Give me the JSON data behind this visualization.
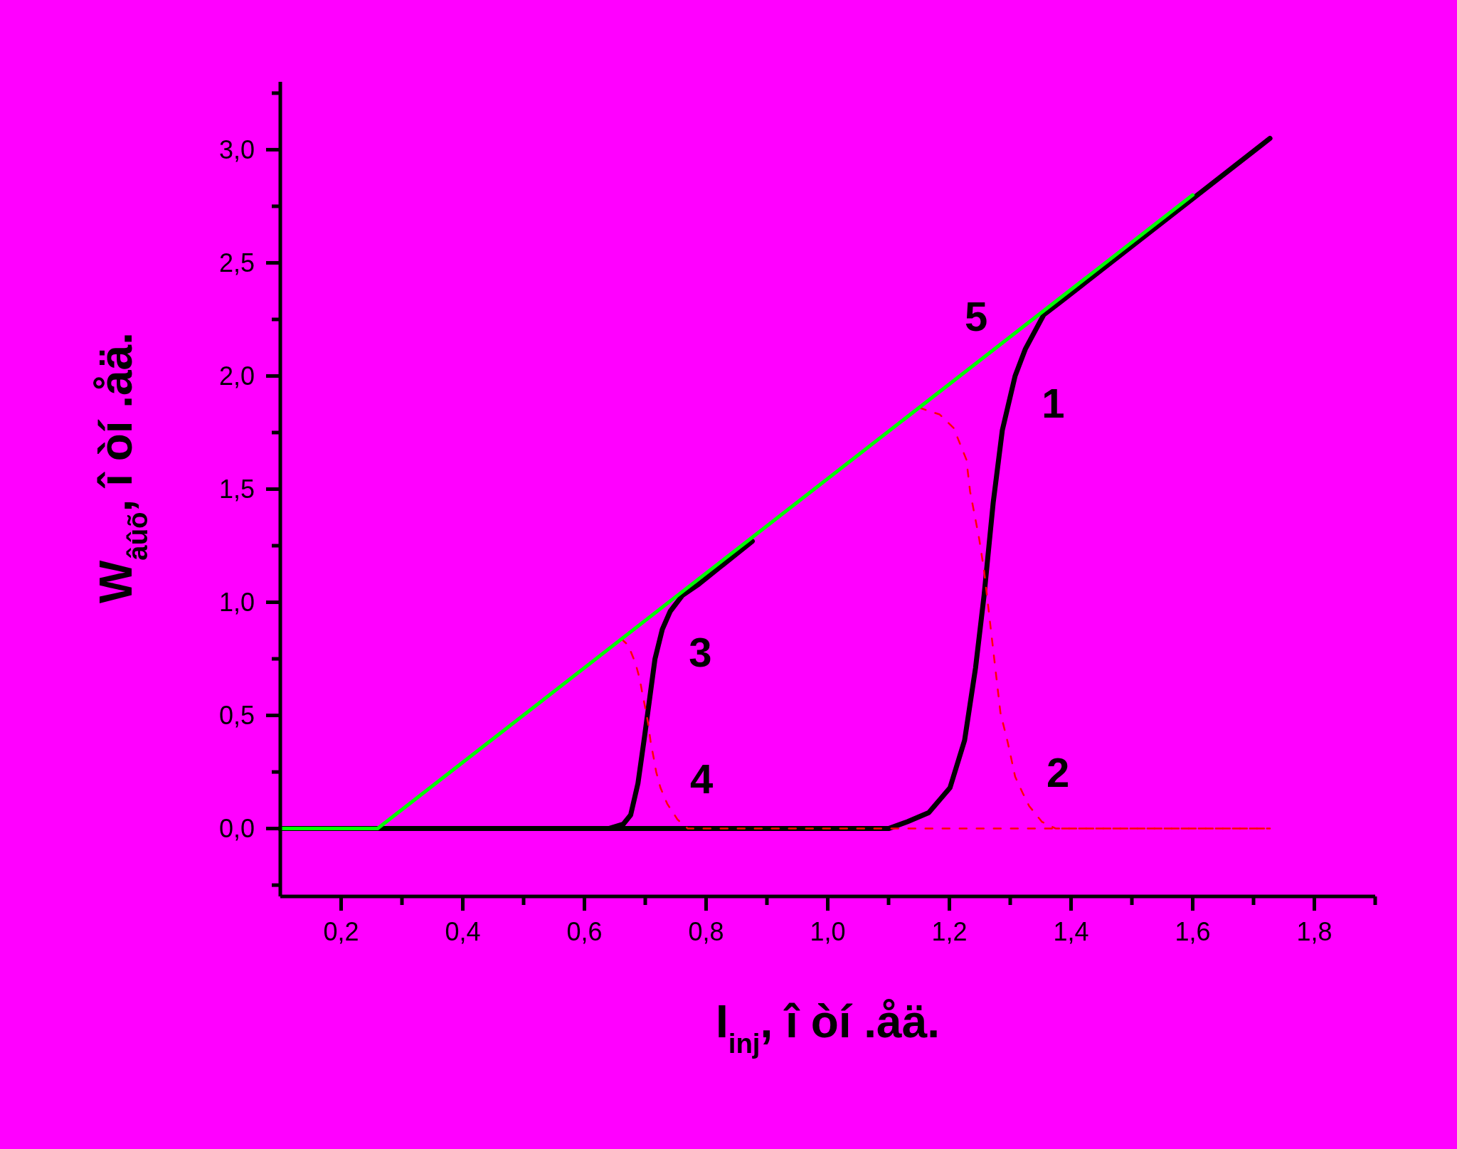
{
  "chart_data": {
    "type": "line",
    "xlabel": "I$_{inj}$, î òí .åä.",
    "ylabel": "W$_{âûõ}$, î òí .åä.",
    "xlim": [
      0.1,
      1.9
    ],
    "ylim": [
      -0.3,
      3.3
    ],
    "xticks": [
      {
        "value": 0.2,
        "label": "0,2"
      },
      {
        "value": 0.3,
        "label": null
      },
      {
        "value": 0.4,
        "label": "0,4"
      },
      {
        "value": 0.5,
        "label": null
      },
      {
        "value": 0.6,
        "label": "0,6"
      },
      {
        "value": 0.7,
        "label": null
      },
      {
        "value": 0.8,
        "label": "0,8"
      },
      {
        "value": 0.9,
        "label": null
      },
      {
        "value": 1.0,
        "label": "1,0"
      },
      {
        "value": 1.1,
        "label": null
      },
      {
        "value": 1.2,
        "label": "1,2"
      },
      {
        "value": 1.3,
        "label": null
      },
      {
        "value": 1.4,
        "label": "1,4"
      },
      {
        "value": 1.5,
        "label": null
      },
      {
        "value": 1.6,
        "label": "1,6"
      },
      {
        "value": 1.7,
        "label": null
      },
      {
        "value": 1.8,
        "label": "1,8"
      },
      {
        "value": 1.9,
        "label": null
      }
    ],
    "yticks": [
      {
        "value": -0.25,
        "label": null
      },
      {
        "value": 0,
        "label": "0,0"
      },
      {
        "value": 0.25,
        "label": null
      },
      {
        "value": 0.5,
        "label": "0,5"
      },
      {
        "value": 0.75,
        "label": null
      },
      {
        "value": 1.0,
        "label": "1,0"
      },
      {
        "value": 1.25,
        "label": null
      },
      {
        "value": 1.5,
        "label": "1,5"
      },
      {
        "value": 1.75,
        "label": null
      },
      {
        "value": 2.0,
        "label": "2,0"
      },
      {
        "value": 2.25,
        "label": null
      },
      {
        "value": 2.5,
        "label": "2,5"
      },
      {
        "value": 2.75,
        "label": null
      },
      {
        "value": 3.0,
        "label": "3,0"
      },
      {
        "value": 3.25,
        "label": null
      }
    ],
    "grid": false,
    "marker": "none",
    "series": [
      {
        "color": "#000000",
        "line_style": "solid",
        "x": [
          0.1,
          1.1,
          1.131,
          1.166,
          1.201,
          1.225,
          1.243,
          1.257,
          1.272,
          1.287,
          1.308,
          1.325,
          1.355,
          1.384,
          1.727
        ],
        "values": [
          0,
          0,
          0.03,
          0.07,
          0.18,
          0.39,
          0.71,
          1.03,
          1.44,
          1.76,
          2.0,
          2.12,
          2.27,
          2.33,
          3.05
        ]
      },
      {
        "color": "#ff0000",
        "line_style": "dashed",
        "x": [
          1.15,
          1.184,
          1.207,
          1.228,
          1.234,
          1.249,
          1.257,
          1.266,
          1.275,
          1.284,
          1.296,
          1.308,
          1.32,
          1.331,
          1.352,
          1.375,
          1.727
        ],
        "values": [
          1.86,
          1.83,
          1.77,
          1.63,
          1.49,
          1.28,
          1.14,
          0.93,
          0.72,
          0.51,
          0.38,
          0.23,
          0.16,
          0.1,
          0.03,
          0,
          0
        ]
      },
      {
        "color": "#000000",
        "line_style": "solid",
        "x": [
          0.1,
          0.64,
          0.664,
          0.676,
          0.688,
          0.699,
          0.707,
          0.716,
          0.728,
          0.741,
          0.761,
          0.788,
          0.876
        ],
        "values": [
          0,
          0,
          0.02,
          0.06,
          0.2,
          0.41,
          0.57,
          0.75,
          0.88,
          0.96,
          1.03,
          1.08,
          1.27
        ]
      },
      {
        "color": "#ff0000",
        "line_style": "dashed",
        "x": [
          0.66,
          0.672,
          0.684,
          0.691,
          0.695,
          0.701,
          0.705,
          0.709,
          0.714,
          0.718,
          0.725,
          0.736,
          0.753,
          0.77,
          1.727
        ],
        "values": [
          0.84,
          0.81,
          0.73,
          0.66,
          0.6,
          0.52,
          0.46,
          0.38,
          0.31,
          0.25,
          0.18,
          0.11,
          0.04,
          0,
          0
        ]
      },
      {
        "color": "#00ff00",
        "line_style": "solid",
        "x": [
          0.1,
          0.26,
          1.6
        ],
        "values": [
          0,
          0,
          2.8
        ]
      }
    ],
    "annotations": [
      {
        "text": "1",
        "x": 1.298,
        "y": 1.88
      },
      {
        "text": "2",
        "x": 1.306,
        "y": 0.25
      },
      {
        "text": "3",
        "x": 0.718,
        "y": 0.78
      },
      {
        "text": "4",
        "x": 0.72,
        "y": 0.22
      },
      {
        "text": "5",
        "x": 1.244,
        "y": 2.05
      }
    ]
  }
}
